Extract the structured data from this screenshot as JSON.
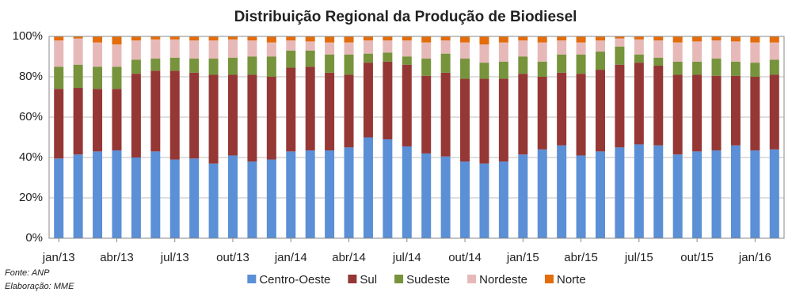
{
  "chart_data": {
    "type": "stacked_bar_percent",
    "title": "Distribuição Regional da Produção de Biodiesel",
    "source": "Fonte: ANP",
    "note": "Elaboração: MME",
    "categories": [
      "jan/13",
      null,
      null,
      "abr/13",
      null,
      null,
      "jul/13",
      null,
      null,
      "out/13",
      null,
      null,
      "jan/14",
      null,
      null,
      "abr/14",
      null,
      null,
      "jul/14",
      null,
      null,
      "out/14",
      null,
      null,
      "jan/15",
      null,
      null,
      "abr/15",
      null,
      null,
      "jul/15",
      null,
      null,
      "out/15",
      null,
      null,
      "jan/16",
      null
    ],
    "series": [
      {
        "name": "Centro-Oeste",
        "color": "#5b8fd6",
        "values": [
          39.5,
          41.5,
          43,
          43.5,
          40,
          43,
          39,
          39.5,
          37,
          41,
          38,
          39,
          43,
          43.5,
          43.5,
          45,
          50,
          49,
          45.5,
          42,
          40.5,
          38,
          37,
          38,
          41.5,
          44,
          46,
          41,
          43,
          45,
          46.5,
          46,
          41.5,
          43,
          43.5,
          46,
          43.5,
          44
        ]
      },
      {
        "name": "Sul",
        "color": "#953735",
        "values": [
          34.5,
          33,
          31,
          30.5,
          41.5,
          40,
          44,
          42.5,
          44,
          40,
          43,
          41,
          41.5,
          41.5,
          38.5,
          36,
          37,
          38.5,
          40.5,
          38.5,
          41.5,
          41,
          42,
          41,
          40,
          36,
          36,
          40.5,
          40.5,
          41,
          40.5,
          39.5,
          39.5,
          38,
          37,
          34.5,
          36.5,
          37
        ]
      },
      {
        "name": "Sudeste",
        "color": "#77933c",
        "values": [
          11,
          11.5,
          11,
          11,
          7,
          6,
          6.5,
          7,
          8,
          8.5,
          9,
          10,
          8.5,
          8,
          9,
          10,
          4.5,
          4.5,
          4,
          8.5,
          9.5,
          10,
          8,
          8.5,
          8.5,
          7.5,
          9,
          9.5,
          9,
          9,
          4,
          4,
          6.5,
          6.5,
          8.5,
          7,
          7,
          7.5
        ]
      },
      {
        "name": "Nordeste",
        "color": "#e6b9b8",
        "values": [
          13,
          13,
          12,
          11,
          9.5,
          9.5,
          9,
          9,
          9,
          9,
          8,
          7,
          5,
          4.5,
          6,
          6,
          6.5,
          6,
          8,
          8,
          6.5,
          8,
          9,
          9.5,
          8,
          9.5,
          7,
          6,
          5.5,
          4,
          7.5,
          8.5,
          9.5,
          10,
          9,
          10,
          10,
          8.5
        ]
      },
      {
        "name": "Norte",
        "color": "#e46c0a",
        "values": [
          2,
          1,
          3,
          4,
          2,
          1.5,
          1.5,
          2,
          2,
          1.5,
          2,
          3,
          2,
          2.5,
          3,
          3,
          2,
          2,
          2,
          3,
          2,
          3,
          4,
          3,
          2,
          3,
          2,
          3,
          2,
          1,
          1.5,
          2,
          3,
          2.5,
          2,
          2.5,
          3,
          3
        ]
      }
    ],
    "ylim": [
      0,
      100
    ],
    "yticks": [
      {
        "value": 0,
        "label": "0%"
      },
      {
        "value": 20,
        "label": "20%"
      },
      {
        "value": 40,
        "label": "40%"
      },
      {
        "value": 60,
        "label": "60%"
      },
      {
        "value": 80,
        "label": "80%"
      },
      {
        "value": 100,
        "label": "100%"
      }
    ],
    "grid": true,
    "legend": "bottom"
  }
}
